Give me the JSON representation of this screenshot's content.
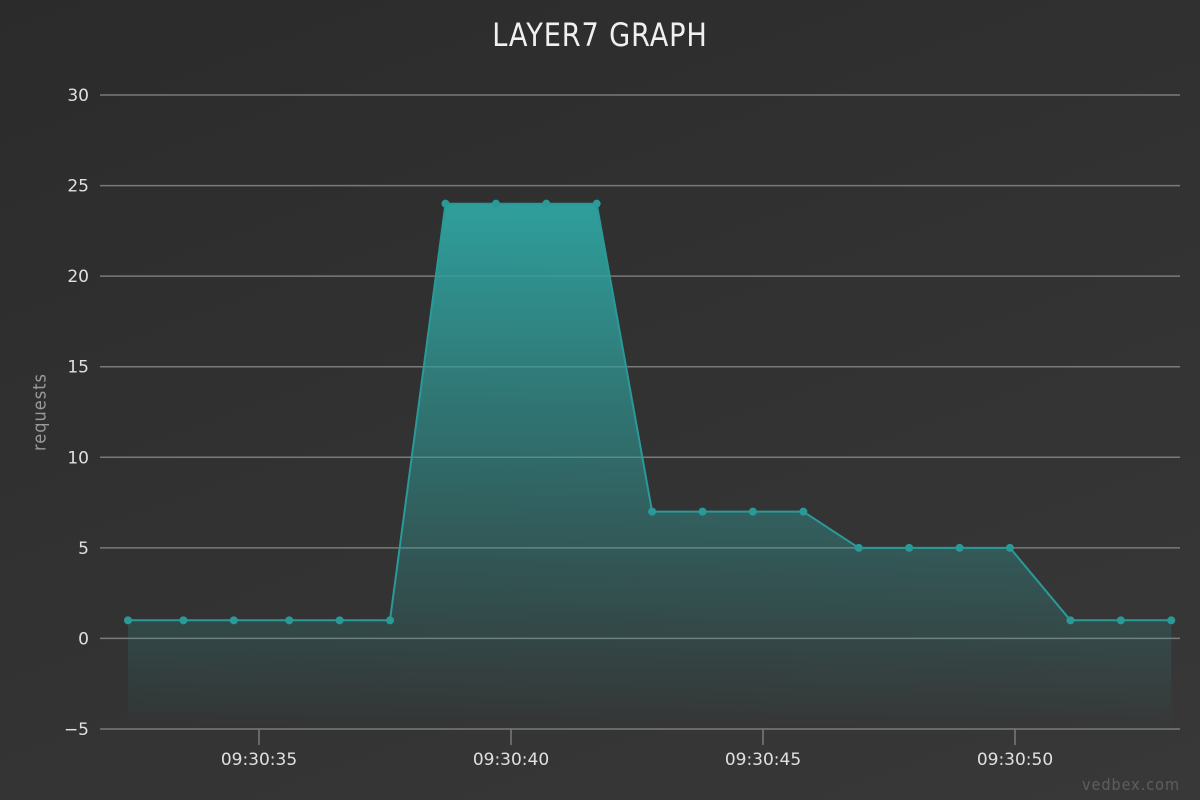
{
  "chart_data": {
    "type": "area",
    "title": "LAYER7 GRAPH",
    "ylabel": "requests",
    "xlabel": "",
    "ylim": [
      -5,
      30
    ],
    "y_ticks": [
      30,
      25,
      20,
      15,
      10,
      5,
      0,
      -5
    ],
    "x_ticks": [
      "09:30:35",
      "09:30:40",
      "09:30:45",
      "09:30:50"
    ],
    "x_tick_seconds": [
      35,
      40,
      45,
      50
    ],
    "grid": true,
    "colors": {
      "line": "#2a9a98",
      "fill_top": "#2f9f9c",
      "point": "#2a9a98",
      "grid": "#7a7a7a"
    },
    "series": [
      {
        "x": [
          32.4,
          33.5,
          34.5,
          35.6,
          36.6,
          37.6,
          38.7,
          39.7,
          40.7,
          41.7,
          42.8,
          43.8,
          44.8,
          45.8,
          46.9,
          47.9,
          48.9,
          49.9,
          51.1,
          52.1,
          53.1
        ],
        "values": [
          1,
          1,
          1,
          1,
          1,
          1,
          24,
          24,
          24,
          24,
          7,
          7,
          7,
          7,
          5,
          5,
          5,
          5,
          1,
          1,
          1
        ]
      }
    ]
  },
  "watermark": "vedbex.com"
}
